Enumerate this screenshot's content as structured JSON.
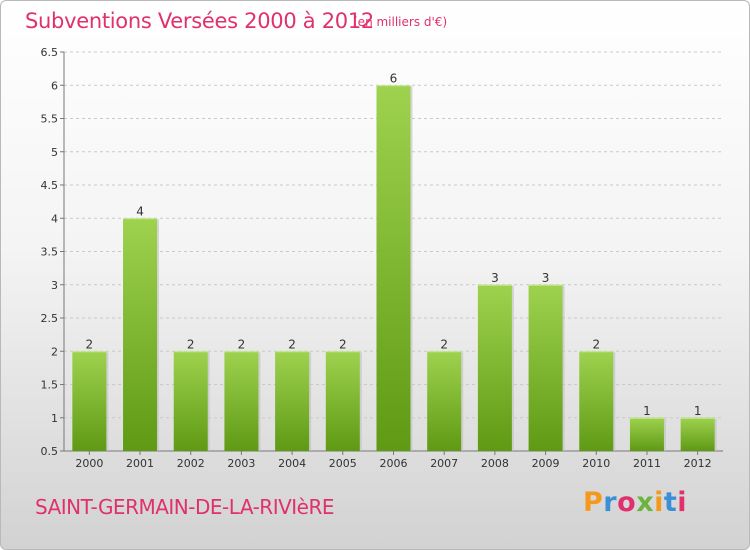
{
  "header": {
    "title": "Subventions Versées 2000 à 2012",
    "units": "(en milliers d'€)"
  },
  "footer": {
    "commune": "SAINT-GERMAIN-DE-LA-RIVIèRE",
    "logo": "Proxiti"
  },
  "colors": {
    "title": "#e0306d",
    "bar_top": "#9ed24f",
    "bar_bottom": "#5f9a14",
    "grid": "#c9c9c9"
  },
  "chart_data": {
    "type": "bar",
    "categories": [
      "2000",
      "2001",
      "2002",
      "2003",
      "2004",
      "2005",
      "2006",
      "2007",
      "2008",
      "2009",
      "2010",
      "2011",
      "2012"
    ],
    "values": [
      2,
      4,
      2,
      2,
      2,
      2,
      6,
      2,
      3,
      3,
      2,
      1,
      1
    ],
    "data_labels": [
      "2",
      "4",
      "2",
      "2",
      "2",
      "2",
      "6",
      "2",
      "3",
      "3",
      "2",
      "1",
      "1"
    ],
    "ylim": [
      0.5,
      6.5
    ],
    "yticks": [
      0.5,
      1,
      1.5,
      2,
      2.5,
      3,
      3.5,
      4,
      4.5,
      5,
      5.5,
      6,
      6.5
    ],
    "ytick_labels": [
      "0.5",
      "1",
      "1.5",
      "2",
      "2.5",
      "3",
      "3.5",
      "4",
      "4.5",
      "5",
      "5.5",
      "6",
      "6.5"
    ],
    "grid": "horizontal dashed",
    "legend": "none"
  }
}
